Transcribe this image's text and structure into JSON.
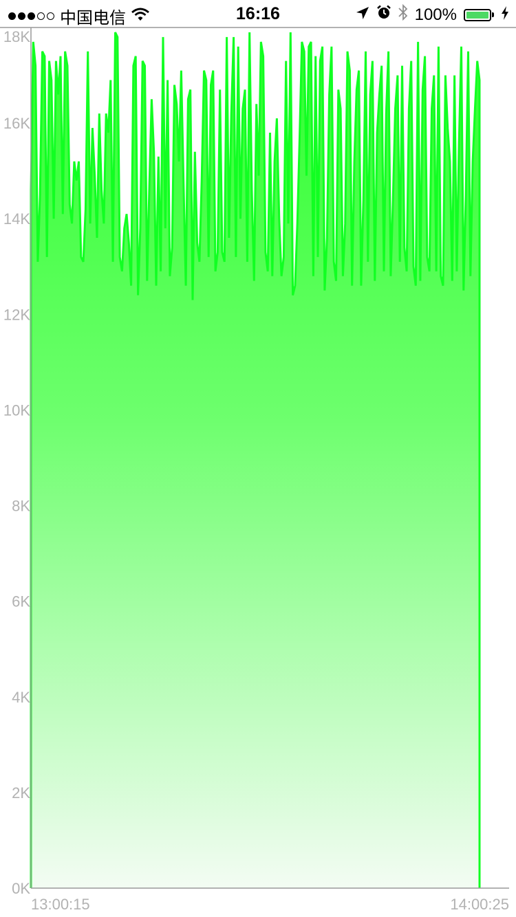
{
  "status_bar": {
    "carrier": "中国电信",
    "time": "16:16",
    "battery": "100%",
    "icons": [
      "signal-dots-icon",
      "wifi-icon",
      "location-arrow-icon",
      "alarm-icon",
      "bluetooth-icon",
      "battery-icon",
      "charging-bolt-icon"
    ]
  },
  "chart_data": {
    "type": "area",
    "title": "",
    "xlabel": "",
    "ylabel": "",
    "ylim": [
      0,
      18000
    ],
    "y_ticks": [
      "0K",
      "2K",
      "4K",
      "6K",
      "8K",
      "10K",
      "12K",
      "14K",
      "16K",
      "18K"
    ],
    "x_tick_labels": [
      "13:00:15",
      "14:00:25"
    ],
    "x_range": [
      "13:00:15",
      "14:00:25"
    ],
    "grid": false,
    "colors": {
      "line": "#11ff22",
      "fill_top": "#2cff2c",
      "fill_bottom": "#f3fcf3",
      "axis": "#999999",
      "tick_text": "#b2b2b2"
    },
    "series": [
      {
        "values": [
          14600,
          17700,
          17200,
          13100,
          14500,
          17500,
          17400,
          13200,
          17300,
          16900,
          14000,
          17300,
          16600,
          17400,
          14100,
          17500,
          17200,
          14300,
          13900,
          15200,
          14800,
          15200,
          13200,
          13100,
          14200,
          17500,
          13900,
          15900,
          14900,
          13600,
          16200,
          14600,
          13900,
          16200,
          15800,
          16900,
          13100,
          17900,
          17800,
          13200,
          12900,
          13800,
          14100,
          13500,
          12600,
          17200,
          17400,
          12400,
          13800,
          17300,
          17200,
          12700,
          14700,
          16500,
          15400,
          12600,
          15300,
          12900,
          17800,
          13800,
          16900,
          12800,
          13400,
          16800,
          16400,
          15200,
          17100,
          14800,
          12600,
          16500,
          16700,
          12300,
          15400,
          13500,
          13100,
          14800,
          17100,
          16900,
          13200,
          16800,
          17100,
          12900,
          13300,
          16700,
          13300,
          13100,
          17800,
          13600,
          16200,
          17800,
          13200,
          17600,
          14000,
          16300,
          16700,
          13100,
          17900,
          14600,
          12700,
          16400,
          14900,
          17700,
          17400,
          13300,
          12900,
          15800,
          12800,
          15200,
          16100,
          14000,
          12800,
          13200,
          17300,
          13900,
          17900,
          12400,
          12600,
          13900,
          15700,
          17700,
          17500,
          14900,
          17600,
          17700,
          12800,
          17400,
          13200,
          17300,
          17600,
          12500,
          13600,
          16600,
          17600,
          13100,
          12700,
          16700,
          16300,
          12800,
          13900,
          17500,
          17100,
          12600,
          15200,
          16700,
          17100,
          12600,
          14400,
          17500,
          13100,
          16600,
          17300,
          12700,
          15800,
          16600,
          17200,
          12900,
          16200,
          17500,
          12800,
          14400,
          16300,
          17000,
          13100,
          17200,
          13400,
          12900,
          16300,
          17300,
          13000,
          12600,
          17700,
          12700,
          16700,
          17400,
          13200,
          12900,
          16300,
          17000,
          12900,
          17600,
          12800,
          12600,
          17000,
          15900,
          15200,
          12700,
          17000,
          12900,
          15600,
          17600,
          12500,
          14500,
          17500,
          12800,
          15200,
          16300,
          17300,
          16900
        ]
      }
    ]
  }
}
